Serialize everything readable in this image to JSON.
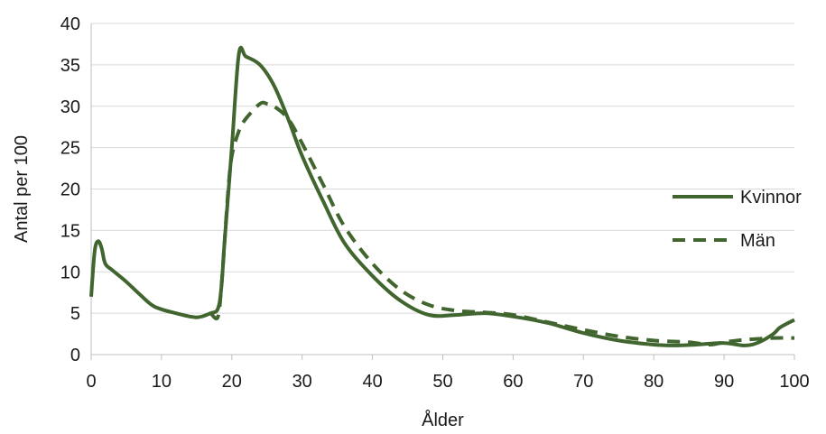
{
  "chart_data": {
    "type": "line",
    "title": "",
    "xlabel": "Ålder",
    "ylabel": "Antal per 100",
    "xlim": [
      0,
      100
    ],
    "ylim": [
      0,
      40
    ],
    "xticks": [
      0,
      10,
      20,
      30,
      40,
      50,
      60,
      70,
      80,
      90,
      100
    ],
    "yticks": [
      0,
      5,
      10,
      15,
      20,
      25,
      30,
      35,
      40
    ],
    "grid": "horizontal",
    "legend_position": "right",
    "color": "#41652f",
    "series": [
      {
        "name": "Kvinnor",
        "style": "solid",
        "x": [
          0,
          0.5,
          1,
          1.5,
          2,
          3,
          5,
          7,
          9,
          12,
          15,
          17,
          18,
          18.5,
          19,
          20,
          21,
          22,
          24,
          26,
          28,
          30,
          33,
          36,
          40,
          44,
          48,
          52,
          56,
          60,
          65,
          70,
          75,
          80,
          83,
          86,
          90,
          93,
          95,
          97,
          98,
          100
        ],
        "y": [
          7,
          12.5,
          13.7,
          12.8,
          11,
          10.2,
          8.8,
          7.2,
          5.8,
          5,
          4.5,
          5,
          5.5,
          8,
          14,
          25,
          36.3,
          36,
          35,
          32.5,
          28.5,
          24,
          18.5,
          13.5,
          9.5,
          6.5,
          4.8,
          4.8,
          5,
          4.6,
          3.8,
          2.6,
          1.7,
          1.2,
          1.1,
          1.2,
          1.4,
          1.1,
          1.5,
          2.5,
          3.3,
          4.2
        ]
      },
      {
        "name": "Män",
        "style": "dashed",
        "x": [
          17,
          18,
          18.5,
          19,
          19.5,
          20,
          21,
          22,
          24,
          25,
          26,
          28,
          30,
          33,
          36,
          40,
          44,
          48,
          52,
          56,
          60,
          65,
          70,
          75,
          80,
          85,
          88,
          90,
          93,
          97,
          100
        ],
        "y": [
          5,
          4.5,
          8,
          14,
          20,
          24,
          27,
          28.5,
          30.3,
          30.3,
          30,
          28.5,
          25.5,
          20.5,
          15.5,
          11,
          7.8,
          6,
          5.3,
          5.1,
          4.8,
          3.9,
          3,
          2.2,
          1.7,
          1.5,
          1.2,
          1.5,
          1.8,
          2,
          2
        ]
      }
    ]
  }
}
